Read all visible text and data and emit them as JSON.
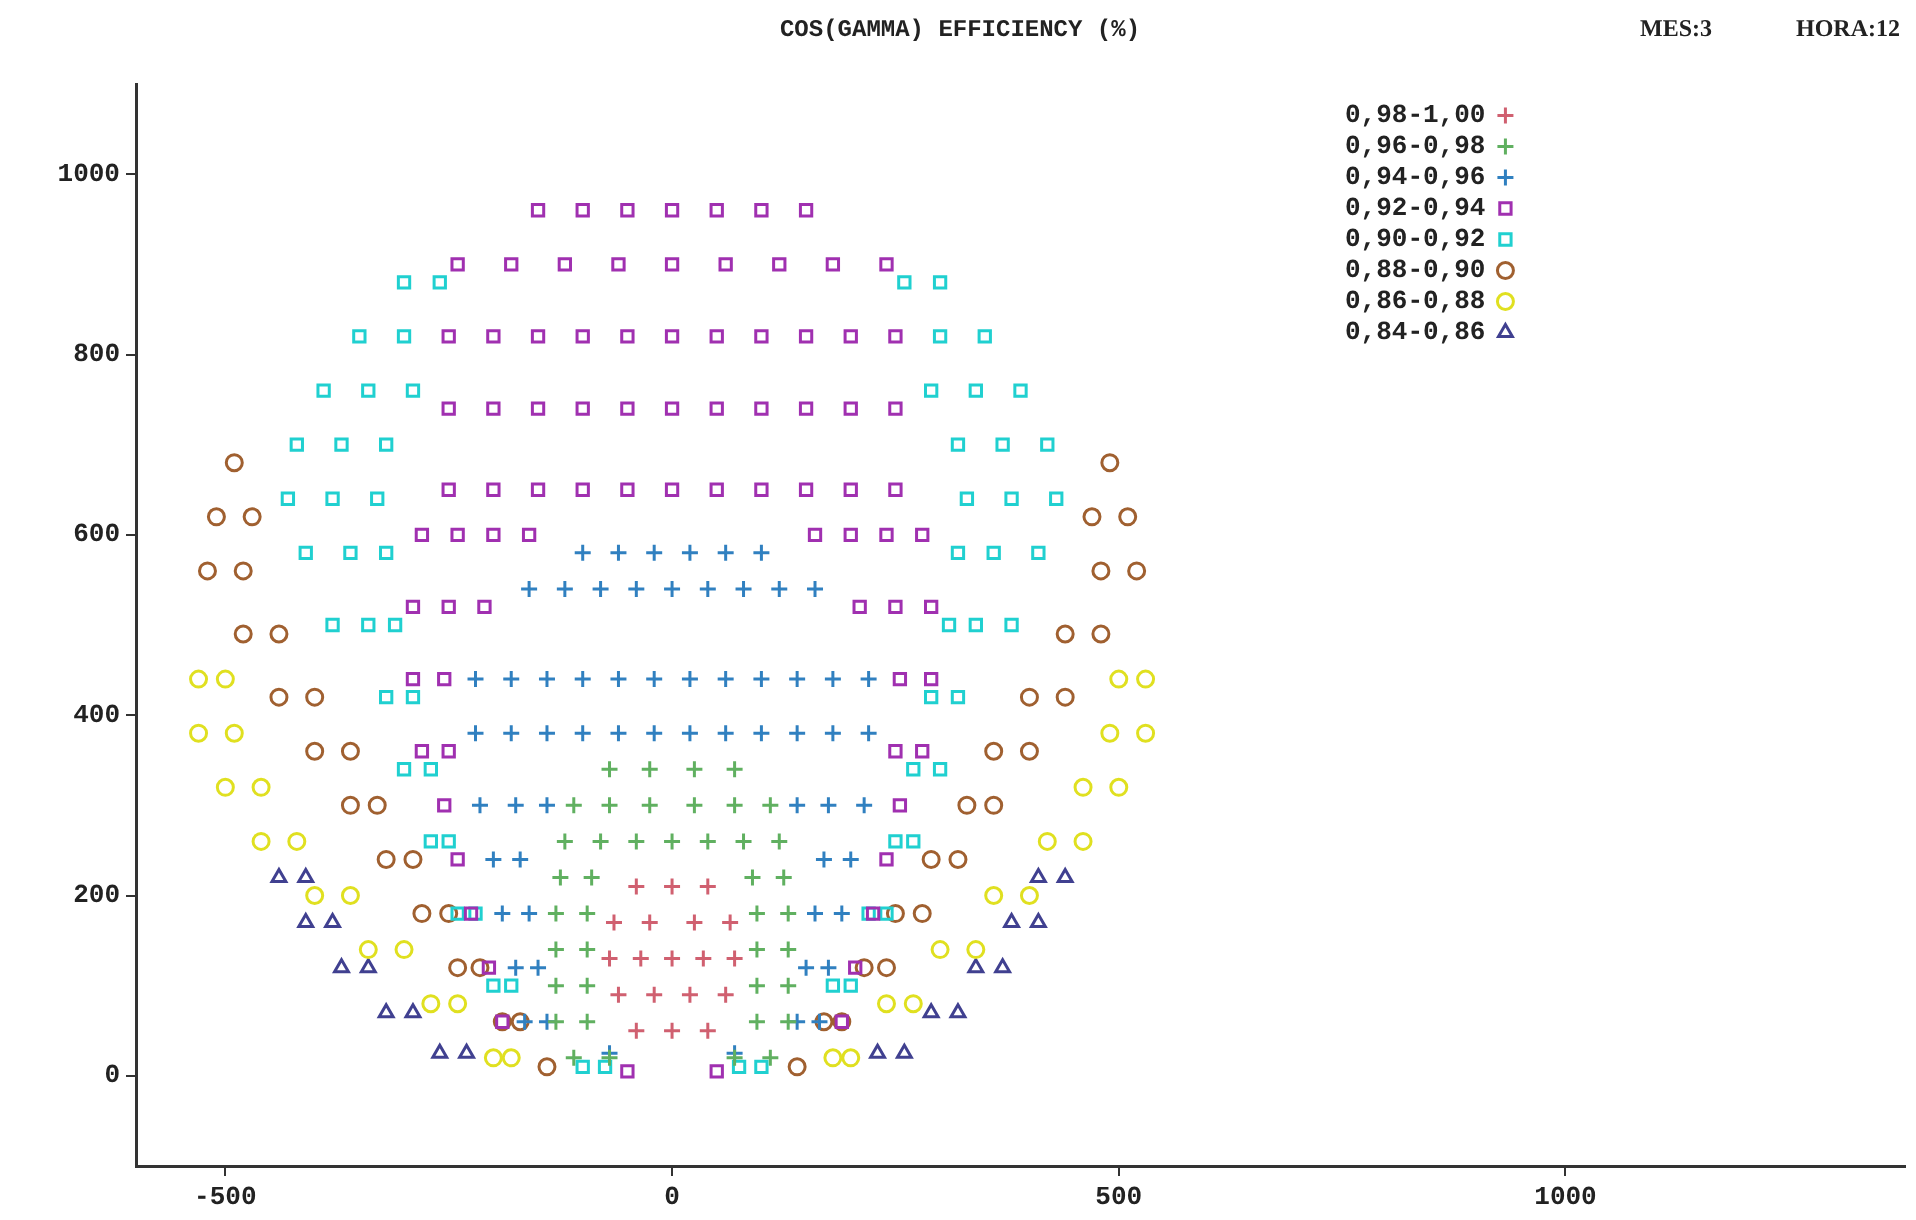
{
  "chart_data": {
    "type": "scatter",
    "title": "COS(GAMMA) EFFICIENCY (%)",
    "annotations": [
      "MES:3",
      "HORA:12"
    ],
    "xlim": [
      -600,
      1380
    ],
    "xticks": [
      -500,
      0,
      500,
      1000
    ],
    "ylim": [
      -100,
      1100
    ],
    "yticks": [
      0,
      200,
      400,
      600,
      800,
      1000
    ],
    "grid": false,
    "legend": "top right",
    "series": [
      {
        "name": "0,98-1,00",
        "color": "#d06070",
        "marker": "cross",
        "x": [
          -40,
          0,
          40,
          -60,
          -20,
          20,
          60,
          -70,
          -35,
          0,
          35,
          70,
          -65,
          -25,
          25,
          65,
          -40,
          0,
          40
        ],
        "values": [
          50,
          50,
          50,
          90,
          90,
          90,
          90,
          130,
          130,
          130,
          130,
          130,
          170,
          170,
          170,
          170,
          210,
          210,
          210
        ]
      },
      {
        "name": "0,96-0,98",
        "color": "#60b060",
        "marker": "cross",
        "x": [
          -110,
          -70,
          70,
          110,
          -130,
          -95,
          95,
          130,
          -130,
          -95,
          95,
          130,
          -130,
          -95,
          95,
          130,
          -130,
          -95,
          95,
          130,
          -125,
          -90,
          90,
          125,
          -120,
          -80,
          -40,
          0,
          40,
          80,
          120,
          -110,
          -70,
          -25,
          25,
          70,
          110,
          -70,
          -25,
          25,
          70
        ],
        "values": [
          20,
          20,
          20,
          20,
          60,
          60,
          60,
          60,
          100,
          100,
          100,
          100,
          140,
          140,
          140,
          140,
          180,
          180,
          180,
          180,
          220,
          220,
          220,
          220,
          260,
          260,
          260,
          260,
          260,
          260,
          260,
          300,
          300,
          300,
          300,
          300,
          300,
          340,
          340,
          340,
          340
        ]
      },
      {
        "name": "0,94-0,96",
        "color": "#3080c0",
        "marker": "cross",
        "x": [
          -70,
          70,
          -165,
          -140,
          140,
          165,
          -175,
          -150,
          150,
          175,
          -190,
          -160,
          160,
          190,
          -200,
          -170,
          170,
          200,
          -215,
          -175,
          -140,
          140,
          175,
          215,
          -220,
          -180,
          -140,
          -100,
          -60,
          -20,
          20,
          60,
          100,
          140,
          180,
          220,
          -220,
          -180,
          -140,
          -100,
          -60,
          -20,
          20,
          60,
          100,
          140,
          180,
          220,
          -160,
          -120,
          -80,
          -40,
          0,
          40,
          80,
          120,
          160,
          -100,
          -60,
          -20,
          20,
          60,
          100
        ],
        "values": [
          25,
          25,
          60,
          60,
          60,
          60,
          120,
          120,
          120,
          120,
          180,
          180,
          180,
          180,
          240,
          240,
          240,
          240,
          300,
          300,
          300,
          300,
          300,
          300,
          380,
          380,
          380,
          380,
          380,
          380,
          380,
          380,
          380,
          380,
          380,
          380,
          440,
          440,
          440,
          440,
          440,
          440,
          440,
          440,
          440,
          440,
          440,
          440,
          540,
          540,
          540,
          540,
          540,
          540,
          540,
          540,
          540,
          580,
          580,
          580,
          580,
          580,
          580
        ]
      },
      {
        "name": "0,92-0,94",
        "color": "#a030b0",
        "marker": "square",
        "x": [
          -50,
          50,
          -190,
          190,
          -205,
          205,
          -225,
          225,
          -240,
          240,
          -255,
          255,
          -280,
          -250,
          250,
          280,
          -290,
          -255,
          255,
          290,
          -290,
          -250,
          -210,
          210,
          250,
          290,
          -280,
          -240,
          -200,
          -160,
          160,
          200,
          240,
          280,
          -250,
          -200,
          -150,
          -100,
          -50,
          0,
          50,
          100,
          150,
          200,
          250,
          -250,
          -200,
          -150,
          -100,
          -50,
          0,
          50,
          100,
          150,
          200,
          250,
          -250,
          -200,
          -150,
          -100,
          -50,
          0,
          50,
          100,
          150,
          200,
          250,
          -240,
          -180,
          -120,
          -60,
          0,
          60,
          120,
          180,
          240,
          -150,
          -100,
          -50,
          0,
          50,
          100,
          150
        ],
        "values": [
          5,
          5,
          60,
          60,
          120,
          120,
          180,
          180,
          240,
          240,
          300,
          300,
          360,
          360,
          360,
          360,
          440,
          440,
          440,
          440,
          520,
          520,
          520,
          520,
          520,
          520,
          600,
          600,
          600,
          600,
          600,
          600,
          600,
          600,
          650,
          650,
          650,
          650,
          650,
          650,
          650,
          650,
          650,
          650,
          650,
          740,
          740,
          740,
          740,
          740,
          740,
          740,
          740,
          740,
          740,
          740,
          820,
          820,
          820,
          820,
          820,
          820,
          820,
          820,
          820,
          820,
          820,
          900,
          900,
          900,
          900,
          900,
          900,
          900,
          900,
          900,
          960,
          960,
          960,
          960,
          960,
          960,
          960
        ]
      },
      {
        "name": "0,90-0,92",
        "color": "#20d0d0",
        "marker": "square",
        "x": [
          -300,
          -260,
          260,
          300,
          -350,
          -300,
          300,
          350,
          -390,
          -340,
          -290,
          290,
          340,
          390,
          -420,
          -370,
          -320,
          320,
          370,
          420,
          -430,
          -380,
          -330,
          330,
          380,
          430,
          -410,
          -360,
          -320,
          320,
          360,
          410,
          -380,
          -340,
          -310,
          310,
          340,
          380,
          -320,
          -290,
          290,
          320,
          -300,
          -270,
          270,
          300,
          -270,
          -250,
          250,
          270,
          -240,
          -220,
          220,
          240,
          -200,
          -180,
          180,
          200,
          -100,
          -75,
          75,
          100
        ],
        "values": [
          880,
          880,
          880,
          880,
          820,
          820,
          820,
          820,
          760,
          760,
          760,
          760,
          760,
          760,
          700,
          700,
          700,
          700,
          700,
          700,
          640,
          640,
          640,
          640,
          640,
          640,
          580,
          580,
          580,
          580,
          580,
          580,
          500,
          500,
          500,
          500,
          500,
          500,
          420,
          420,
          420,
          420,
          340,
          340,
          340,
          340,
          260,
          260,
          260,
          260,
          180,
          180,
          180,
          180,
          100,
          100,
          100,
          100,
          10,
          10,
          10,
          10
        ]
      },
      {
        "name": "0,88-0,90",
        "color": "#a06030",
        "marker": "circle",
        "x": [
          -490,
          490,
          -510,
          -470,
          470,
          510,
          -520,
          -480,
          480,
          520,
          -480,
          -440,
          440,
          480,
          -440,
          -400,
          400,
          440,
          -400,
          -360,
          360,
          400,
          -360,
          -330,
          330,
          360,
          -320,
          -290,
          290,
          320,
          -280,
          -250,
          250,
          280,
          -240,
          -215,
          215,
          240,
          -190,
          -170,
          170,
          190,
          -140,
          140
        ],
        "values": [
          680,
          680,
          620,
          620,
          620,
          620,
          560,
          560,
          560,
          560,
          490,
          490,
          490,
          490,
          420,
          420,
          420,
          420,
          360,
          360,
          360,
          360,
          300,
          300,
          300,
          300,
          240,
          240,
          240,
          240,
          180,
          180,
          180,
          180,
          120,
          120,
          120,
          120,
          60,
          60,
          60,
          60,
          10,
          10
        ]
      },
      {
        "name": "0,86-0,88",
        "color": "#e0e020",
        "marker": "circle",
        "x": [
          -530,
          -500,
          500,
          530,
          -530,
          -490,
          490,
          530,
          -500,
          -460,
          460,
          500,
          -460,
          -420,
          420,
          460,
          -400,
          -360,
          360,
          400,
          -340,
          -300,
          300,
          340,
          -270,
          -240,
          240,
          270,
          -200,
          -180,
          180,
          200
        ],
        "values": [
          440,
          440,
          440,
          440,
          380,
          380,
          380,
          380,
          320,
          320,
          320,
          320,
          260,
          260,
          260,
          260,
          200,
          200,
          200,
          200,
          140,
          140,
          140,
          140,
          80,
          80,
          80,
          80,
          20,
          20,
          20,
          20
        ]
      },
      {
        "name": "0,84-0,86",
        "color": "#404090",
        "marker": "triangle",
        "x": [
          -440,
          -410,
          410,
          440,
          -410,
          -380,
          380,
          410,
          -370,
          -340,
          340,
          370,
          -320,
          -290,
          290,
          320,
          -260,
          -230,
          230,
          260
        ],
        "values": [
          220,
          220,
          220,
          220,
          170,
          170,
          170,
          170,
          120,
          120,
          120,
          120,
          70,
          70,
          70,
          70,
          25,
          25,
          25,
          25
        ]
      }
    ]
  }
}
